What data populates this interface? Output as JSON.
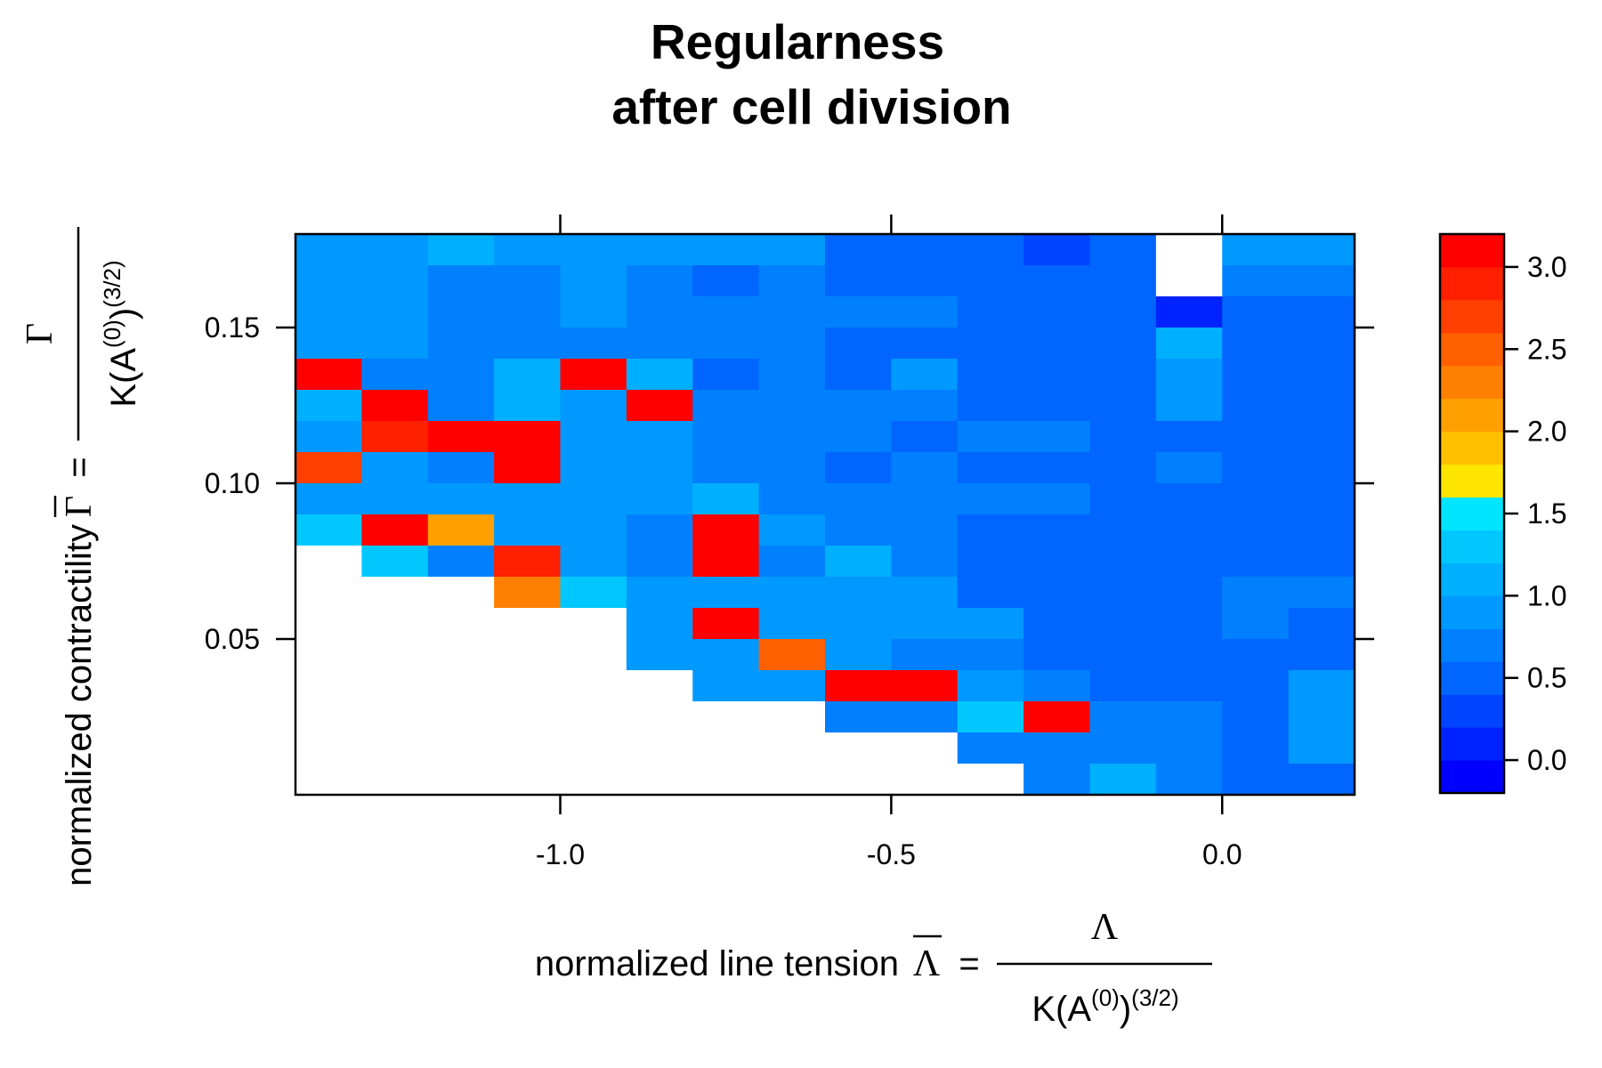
{
  "chart_data": {
    "type": "heatmap",
    "title_lines": [
      "Regularness",
      "after cell division"
    ],
    "xlabel": {
      "prefix": "normalized line tension",
      "symbol": "Λ",
      "equals": "=",
      "numerator": "Λ",
      "denominator": {
        "base": "K(A",
        "sup1": "(0)",
        "close": ")",
        "sup2": "(3/2)"
      }
    },
    "ylabel": {
      "prefix": "normalized contractility",
      "symbol": "Γ",
      "equals": "=",
      "numerator": "Γ",
      "denominator": {
        "base": "K(A",
        "sup1": "(0)",
        "close": ")",
        "sup2": "(3/2)"
      }
    },
    "x_ticks": [
      {
        "value": -1.0,
        "label": "-1.0"
      },
      {
        "value": -0.5,
        "label": "-0.5"
      },
      {
        "value": 0.0,
        "label": "0.0"
      }
    ],
    "y_ticks": [
      {
        "value": 0.05,
        "label": "0.05"
      },
      {
        "value": 0.1,
        "label": "0.10"
      },
      {
        "value": 0.15,
        "label": "0.15"
      }
    ],
    "xlim": [
      -1.4,
      0.2
    ],
    "ylim": [
      0.0,
      0.18
    ],
    "x_centers": [
      -1.35,
      -1.25,
      -1.15,
      -1.05,
      -0.95,
      -0.85,
      -0.75,
      -0.65,
      -0.55,
      -0.45,
      -0.35,
      -0.25,
      -0.15,
      -0.05,
      0.05,
      0.15
    ],
    "x_cell_width": 0.1,
    "y_cell_height": 0.01,
    "y_rows_top_to_bottom": [
      0.175,
      0.165,
      0.155,
      0.145,
      0.135,
      0.125,
      0.115,
      0.105,
      0.095,
      0.085,
      0.075,
      0.065,
      0.055,
      0.045,
      0.035,
      0.025,
      0.015,
      0.005
    ],
    "values": [
      [
        0.95,
        0.95,
        1.05,
        0.8,
        0.8,
        0.8,
        0.8,
        0.8,
        0.5,
        0.5,
        0.5,
        0.35,
        0.5,
        null,
        0.8,
        0.8
      ],
      [
        0.95,
        0.95,
        0.7,
        0.7,
        0.95,
        0.7,
        0.5,
        0.7,
        0.5,
        0.5,
        0.5,
        0.5,
        0.5,
        null,
        0.7,
        0.7
      ],
      [
        0.95,
        0.95,
        0.7,
        0.7,
        0.95,
        0.7,
        0.7,
        0.7,
        0.7,
        0.7,
        0.5,
        0.5,
        0.5,
        0.1,
        0.5,
        0.5
      ],
      [
        0.95,
        0.95,
        0.7,
        0.7,
        0.7,
        0.7,
        0.7,
        0.7,
        0.5,
        0.5,
        0.5,
        0.5,
        0.5,
        1.0,
        0.5,
        0.5
      ],
      [
        3.2,
        0.7,
        0.7,
        1.0,
        3.2,
        1.0,
        0.5,
        0.7,
        0.5,
        0.9,
        0.5,
        0.5,
        0.5,
        0.8,
        0.5,
        0.5
      ],
      [
        1.0,
        3.2,
        0.7,
        1.0,
        0.8,
        3.2,
        0.7,
        0.7,
        0.7,
        0.7,
        0.5,
        0.5,
        0.5,
        0.8,
        0.5,
        0.5
      ],
      [
        0.8,
        2.9,
        3.2,
        3.2,
        0.95,
        0.95,
        0.7,
        0.7,
        0.7,
        0.5,
        0.7,
        0.7,
        0.5,
        0.5,
        0.5,
        0.5
      ],
      [
        2.7,
        0.95,
        0.7,
        3.2,
        0.95,
        0.95,
        0.7,
        0.7,
        0.5,
        0.7,
        0.5,
        0.5,
        0.5,
        0.7,
        0.5,
        0.5
      ],
      [
        0.95,
        0.95,
        0.8,
        0.8,
        0.95,
        0.95,
        1.0,
        0.7,
        0.7,
        0.7,
        0.7,
        0.7,
        0.5,
        0.5,
        0.5,
        0.5
      ],
      [
        1.25,
        3.2,
        2.0,
        0.8,
        0.95,
        0.7,
        3.2,
        0.95,
        0.7,
        0.7,
        0.5,
        0.5,
        0.5,
        0.5,
        0.5,
        0.5
      ],
      [
        null,
        1.2,
        0.7,
        2.9,
        0.95,
        0.7,
        3.2,
        0.7,
        1.0,
        0.7,
        0.5,
        0.5,
        0.5,
        0.5,
        0.5,
        0.5
      ],
      [
        null,
        null,
        null,
        2.3,
        1.3,
        0.95,
        0.95,
        0.95,
        0.8,
        0.8,
        0.5,
        0.5,
        0.5,
        0.5,
        0.7,
        0.7
      ],
      [
        null,
        null,
        null,
        null,
        null,
        0.95,
        3.2,
        0.95,
        0.95,
        0.95,
        0.95,
        0.5,
        0.5,
        0.5,
        0.7,
        0.5
      ],
      [
        null,
        null,
        null,
        null,
        null,
        0.95,
        0.95,
        2.5,
        0.95,
        0.7,
        0.7,
        0.5,
        0.5,
        0.5,
        0.5,
        0.5
      ],
      [
        null,
        null,
        null,
        null,
        null,
        null,
        0.95,
        0.95,
        3.2,
        3.2,
        0.95,
        0.7,
        0.5,
        0.5,
        0.5,
        0.8
      ],
      [
        null,
        null,
        null,
        null,
        null,
        null,
        null,
        null,
        0.7,
        0.7,
        1.25,
        3.2,
        0.7,
        0.7,
        0.5,
        0.8
      ],
      [
        null,
        null,
        null,
        null,
        null,
        null,
        null,
        null,
        null,
        null,
        0.7,
        0.7,
        0.7,
        0.7,
        0.5,
        0.8
      ],
      [
        null,
        null,
        null,
        null,
        null,
        null,
        null,
        null,
        null,
        null,
        null,
        0.7,
        1.0,
        0.7,
        0.5,
        0.5
      ]
    ],
    "colorbar": {
      "range": [
        -0.2,
        3.2
      ],
      "ticks": [
        {
          "value": 0.0,
          "label": "0.0"
        },
        {
          "value": 0.5,
          "label": "0.5"
        },
        {
          "value": 1.0,
          "label": "1.0"
        },
        {
          "value": 1.5,
          "label": "1.5"
        },
        {
          "value": 2.0,
          "label": "2.0"
        },
        {
          "value": 2.5,
          "label": "2.5"
        },
        {
          "value": 3.0,
          "label": "3.0"
        }
      ],
      "bins": [
        {
          "lo": -0.2,
          "hi": 0.0,
          "color": "#0000ff"
        },
        {
          "lo": 0.0,
          "hi": 0.2,
          "color": "#0022ff"
        },
        {
          "lo": 0.2,
          "hi": 0.4,
          "color": "#0044ff"
        },
        {
          "lo": 0.4,
          "hi": 0.6,
          "color": "#0066ff"
        },
        {
          "lo": 0.6,
          "hi": 0.8,
          "color": "#0080ff"
        },
        {
          "lo": 0.8,
          "hi": 1.0,
          "color": "#0099ff"
        },
        {
          "lo": 1.0,
          "hi": 1.2,
          "color": "#00b0ff"
        },
        {
          "lo": 1.2,
          "hi": 1.4,
          "color": "#00c8ff"
        },
        {
          "lo": 1.4,
          "hi": 1.6,
          "color": "#00e5ff"
        },
        {
          "lo": 1.6,
          "hi": 1.8,
          "color": "#ffe600"
        },
        {
          "lo": 1.8,
          "hi": 2.0,
          "color": "#ffc000"
        },
        {
          "lo": 2.0,
          "hi": 2.2,
          "color": "#ffa000"
        },
        {
          "lo": 2.2,
          "hi": 2.4,
          "color": "#ff8000"
        },
        {
          "lo": 2.4,
          "hi": 2.6,
          "color": "#ff6000"
        },
        {
          "lo": 2.6,
          "hi": 2.8,
          "color": "#ff4000"
        },
        {
          "lo": 2.8,
          "hi": 3.0,
          "color": "#ff2000"
        },
        {
          "lo": 3.0,
          "hi": 3.2,
          "color": "#ff0000"
        }
      ]
    },
    "missing_color": "#ffffff",
    "grid": false,
    "legend": "colorbar-right"
  }
}
